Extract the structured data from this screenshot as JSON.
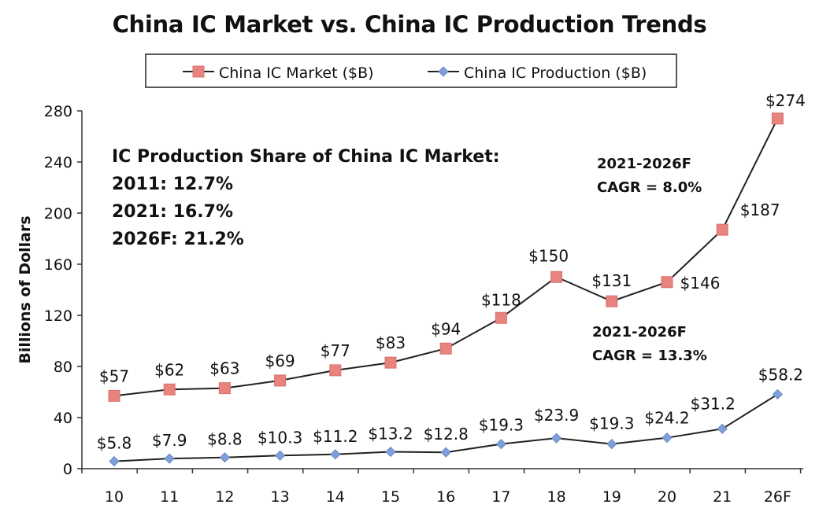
{
  "chart_data": {
    "type": "line",
    "title": "China IC Market vs. China IC Production Trends",
    "xlabel": "",
    "ylabel": "Billions of Dollars",
    "categories": [
      "10",
      "11",
      "12",
      "13",
      "14",
      "15",
      "16",
      "17",
      "18",
      "19",
      "20",
      "21",
      "26F"
    ],
    "ylim": [
      0,
      280
    ],
    "yticks": [
      0,
      40,
      80,
      120,
      160,
      200,
      240,
      280
    ],
    "grid": false,
    "legend_position": "top",
    "series": [
      {
        "name": "China IC Market ($B)",
        "color": "#e8837f",
        "marker": "square",
        "values": [
          57,
          62,
          63,
          69,
          77,
          83,
          94,
          118,
          150,
          131,
          146,
          187,
          274
        ],
        "labels": [
          "$57",
          "$62",
          "$63",
          "$69",
          "$77",
          "$83",
          "$94",
          "$118",
          "$150",
          "$131",
          "$146",
          "$187",
          "$274"
        ]
      },
      {
        "name": "China IC Production ($B)",
        "color": "#7f9fd8",
        "marker": "diamond",
        "values": [
          5.8,
          7.9,
          8.8,
          10.3,
          11.2,
          13.2,
          12.8,
          19.3,
          23.9,
          19.3,
          24.2,
          31.2,
          58.2
        ],
        "labels": [
          "$5.8",
          "$7.9",
          "$8.8",
          "$10.3",
          "$11.2",
          "$13.2",
          "$12.8",
          "$19.3",
          "$23.9",
          "$19.3",
          "$24.2",
          "$31.2",
          "$58.2"
        ]
      }
    ],
    "annotations": {
      "share": {
        "heading": "IC Production Share of China IC Market:",
        "lines": [
          "2011: 12.7%",
          "2021: 16.7%",
          "2026F: 21.2%"
        ]
      },
      "cagr_market": {
        "line1": "2021-2026F",
        "line2": "CAGR = 8.0%"
      },
      "cagr_production": {
        "line1": "2021-2026F",
        "line2": "CAGR = 13.3%"
      }
    }
  }
}
